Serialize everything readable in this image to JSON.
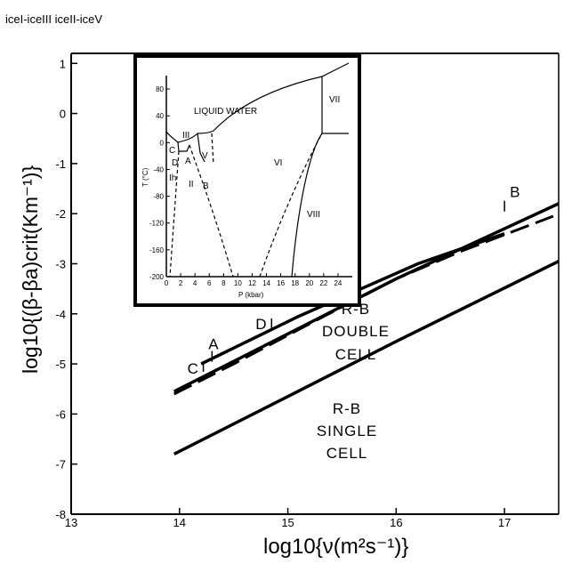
{
  "header": {
    "transitions": "iceI-iceIII iceII-iceV"
  },
  "chart_data": {
    "type": "line",
    "xlabel": "log10{ν(m²s⁻¹)}",
    "ylabel": "log10{(β-βa)crit(Km⁻¹)}",
    "xlim": [
      13,
      17.5
    ],
    "ylim": [
      -8,
      1.2
    ],
    "xticks": [
      "13",
      "14",
      "15",
      "16",
      "17"
    ],
    "yticks": [
      "1",
      "0",
      "-1",
      "-2",
      "-3",
      "-4",
      "-5",
      "-6",
      "-7",
      "-8"
    ],
    "series": [
      {
        "style": "solid",
        "x": [
          14.2,
          15.1,
          16.2,
          17.0
        ],
        "y": [
          -5.0,
          -4.05,
          -3.0,
          -2.4
        ]
      },
      {
        "style": "dashed",
        "x": [
          13.95,
          14.5,
          15.2,
          16.0,
          16.6,
          17.45
        ],
        "y": [
          -5.6,
          -5.0,
          -4.2,
          -3.3,
          -2.75,
          -2.05
        ]
      },
      {
        "style": "solid",
        "x": [
          13.95,
          15.0,
          16.0,
          17.5
        ],
        "y": [
          -5.55,
          -4.4,
          -3.3,
          -1.8
        ]
      },
      {
        "style": "solid",
        "x": [
          13.95,
          15.0,
          16.0,
          17.5
        ],
        "y": [
          -6.8,
          -5.65,
          -4.55,
          -2.95
        ]
      }
    ],
    "points": [
      {
        "label": "A",
        "x": 14.3,
        "y": -4.85
      },
      {
        "label": "B",
        "x": 17.0,
        "y": -1.85
      },
      {
        "label": "C",
        "x": 14.22,
        "y": -5.05
      },
      {
        "label": "D",
        "x": 14.85,
        "y": -4.2
      }
    ],
    "annotations": [
      {
        "text": "R-B DOUBLE CELL"
      },
      {
        "text": "R-B SINGLE CELL"
      }
    ],
    "inset": {
      "type": "phase-diagram",
      "title": "LIQUID WATER",
      "xlabel": "P (kbar)",
      "ylabel": "T (°C)",
      "xlim": [
        0,
        26
      ],
      "ylim": [
        -200,
        100
      ],
      "xticks": [
        "0",
        "2",
        "4",
        "6",
        "8",
        "10",
        "12",
        "14",
        "16",
        "18",
        "20",
        "22",
        "24"
      ],
      "yticks": [
        "80",
        "40",
        "0",
        "-40",
        "-80",
        "-120",
        "-160",
        "-200"
      ],
      "phases": [
        "III",
        "V",
        "VI",
        "VII",
        "VIII",
        "II",
        "Ih"
      ],
      "points": [
        "A",
        "B",
        "C",
        "D"
      ]
    }
  }
}
